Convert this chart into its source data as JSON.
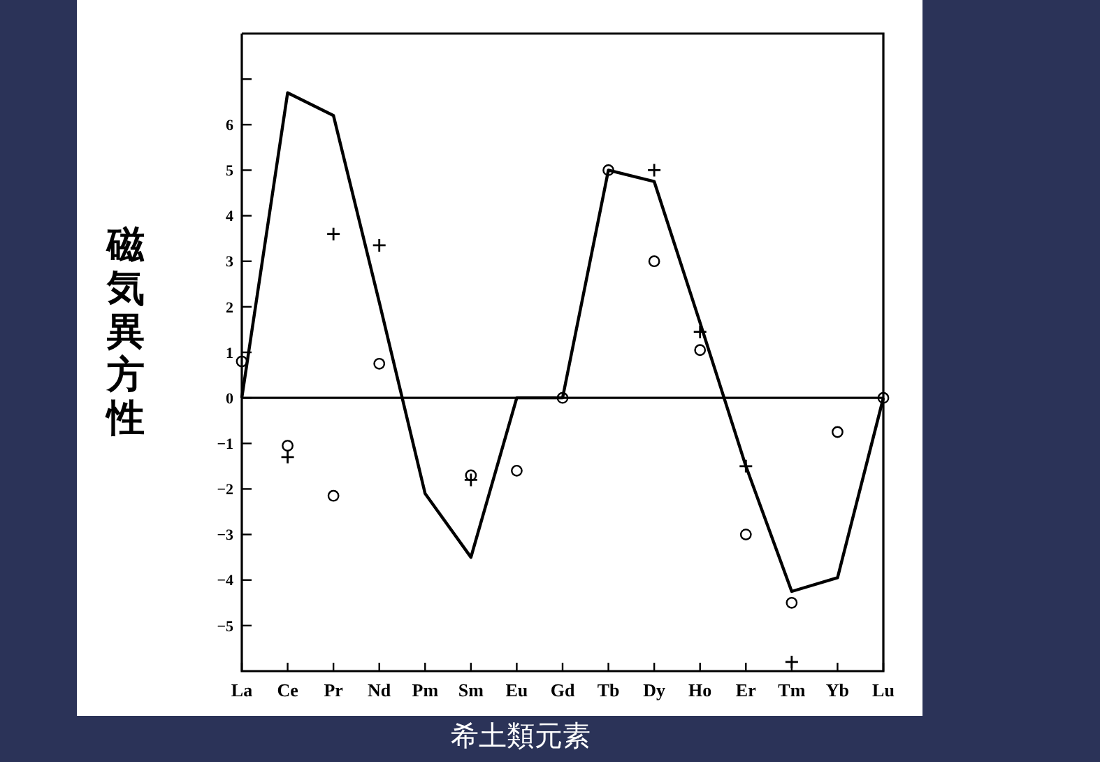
{
  "chart_data": {
    "type": "line",
    "xlabel": "希土類元素",
    "ylabel": "磁気異方性",
    "categories": [
      "La",
      "Ce",
      "Pr",
      "Nd",
      "Pm",
      "Sm",
      "Eu",
      "Gd",
      "Tb",
      "Dy",
      "Ho",
      "Er",
      "Tm",
      "Yb",
      "Lu"
    ],
    "series": [
      {
        "type": "line",
        "color": "#000000",
        "marker": "none",
        "line_style": "solid",
        "values": [
          0,
          6.7,
          6.2,
          2.1,
          -2.1,
          -3.5,
          0,
          0,
          5.0,
          4.75,
          1.65,
          -1.5,
          -4.25,
          -3.95,
          0
        ]
      },
      {
        "type": "scatter",
        "color": "#000000",
        "marker": "circle",
        "values": [
          0.8,
          -1.05,
          -2.15,
          0.75,
          null,
          -1.7,
          -1.6,
          0,
          5.0,
          3.0,
          1.05,
          -3.0,
          -4.5,
          -0.75,
          0
        ]
      },
      {
        "type": "scatter",
        "color": "#000000",
        "marker": "cross",
        "values": [
          null,
          -1.3,
          3.6,
          3.35,
          null,
          -1.8,
          null,
          null,
          null,
          5.0,
          1.45,
          -1.5,
          -5.8,
          null,
          null
        ]
      }
    ],
    "ylim": [
      -6,
      8
    ],
    "yticks": [
      {
        "value": -5,
        "label": "−5"
      },
      {
        "value": -4,
        "label": "−4"
      },
      {
        "value": -3,
        "label": "−3"
      },
      {
        "value": -2,
        "label": "−2"
      },
      {
        "value": -1,
        "label": "−1"
      },
      0,
      1,
      2,
      3,
      4,
      5,
      6,
      {
        "value": 7,
        "label": null
      }
    ],
    "ref_lines": [
      {
        "axis": "y",
        "value": 0
      }
    ],
    "grid": false
  }
}
